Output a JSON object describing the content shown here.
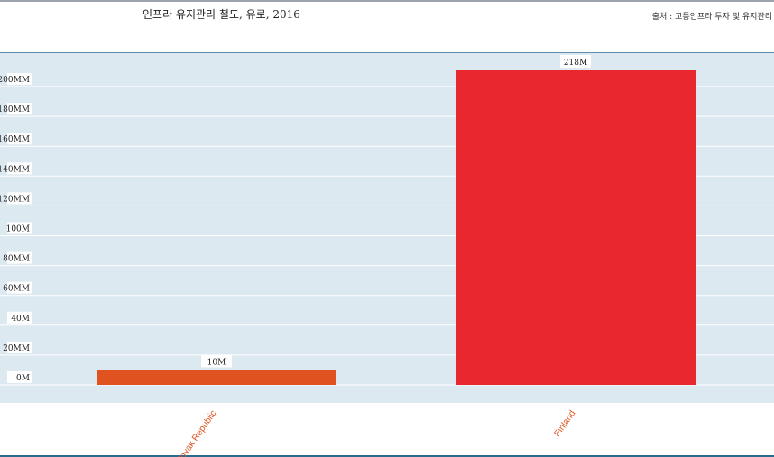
{
  "header": {
    "title": "인프라 유지관리 철도, 유로, 2016",
    "source": "출처 : 교통인프라 투자 및 유지관리"
  },
  "chart_data": {
    "type": "bar",
    "title": "인프라 유지관리 철도, 유로, 2016",
    "categories": [
      "Slovak Republic",
      "Finland"
    ],
    "values": [
      10,
      218
    ],
    "value_labels": [
      "10M",
      "218M"
    ],
    "bar_colors": [
      "#e0521f",
      "#e8282e"
    ],
    "ylim": [
      0,
      200
    ],
    "yticks": [
      0,
      20,
      40,
      60,
      80,
      100,
      120,
      140,
      160,
      180,
      200
    ],
    "ytick_labels": [
      "0M",
      "20MM",
      "40M",
      "60MM",
      "80MM",
      "100M",
      "120MM",
      "140MM",
      "160MM",
      "180MM",
      "200MM"
    ],
    "xlabel": "",
    "ylabel": "",
    "grid": true,
    "label_color": "#e0521f"
  }
}
